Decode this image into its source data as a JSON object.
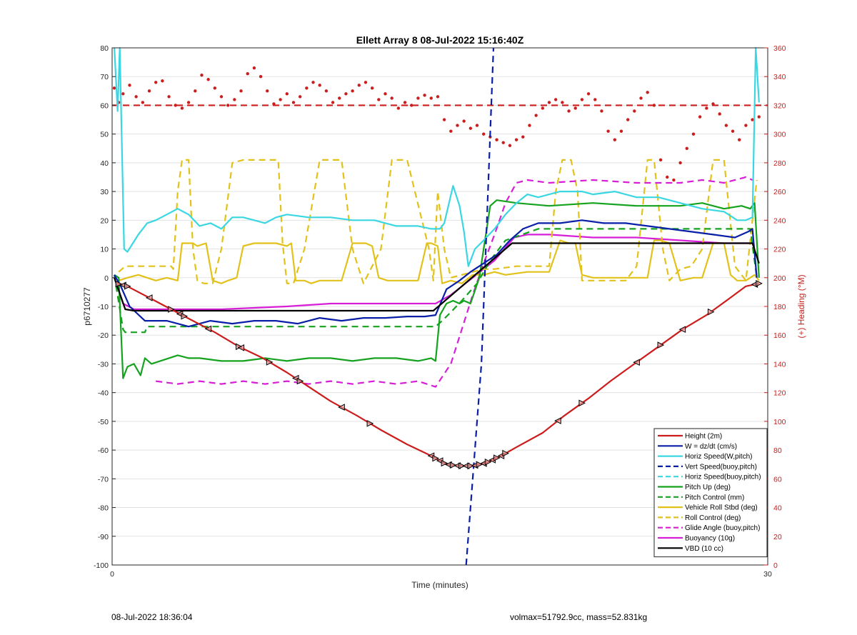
{
  "footer": {
    "left": "08-Jul-2022 18:36:04",
    "right": "volmax=51792.9cc, mass=52.831kg"
  },
  "colors": {
    "height": "#cc1d1d",
    "w": "#0a1fa8",
    "horiz": "#3ad7e3",
    "pitch": "#15a31f",
    "roll": "#e2c21a",
    "glide": "#d61fd6",
    "vbd": "#000000",
    "heading": "#cc1d1d",
    "grid": "#e3e3e3"
  },
  "chart_data": {
    "type": "line",
    "title": "Ellett Array 8 08-Jul-2022 15:16:40Z",
    "xlabel": "Time (minutes)",
    "ylabel": "p6710277",
    "ylabel_right": "(+) Heading (°M)",
    "xlim": [
      0,
      30
    ],
    "ylim": [
      -100,
      80
    ],
    "ylim_right": [
      0,
      360
    ],
    "xticks": [
      0,
      30
    ],
    "yticks": [
      -100,
      -90,
      -80,
      -70,
      -60,
      -50,
      -40,
      -30,
      -20,
      -10,
      0,
      10,
      20,
      30,
      40,
      50,
      60,
      70,
      80
    ],
    "yticks_right": [
      0,
      20,
      40,
      60,
      80,
      100,
      120,
      140,
      160,
      180,
      200,
      220,
      240,
      260,
      280,
      300,
      320,
      340,
      360
    ],
    "grid": true,
    "legend_position": "bottom-right",
    "series": [
      {
        "name": "Height (2m)",
        "style": "solid",
        "color": "#cc1d1d",
        "x": [
          0.2,
          0.7,
          1.7,
          2.7,
          3.7,
          4.7,
          5.8,
          6.9,
          8.0,
          9.0,
          10.0,
          11.2,
          12.3,
          13.5,
          14.6,
          15.3,
          15.9,
          16.5,
          17.1,
          17.8,
          18.5,
          19.7,
          20.7,
          21.8,
          22.8,
          23.9,
          25.0,
          26.1,
          27.2,
          28.2,
          29.0,
          29.6
        ],
        "y": [
          -2,
          -3,
          -7,
          -11,
          -15,
          -19,
          -24,
          -28,
          -33,
          -38,
          -43,
          -48,
          -53,
          -58,
          -62,
          -65,
          -65.5,
          -65.5,
          -64.5,
          -62,
          -59,
          -54,
          -48,
          -42,
          -36,
          -30,
          -24,
          -18,
          -13,
          -7.5,
          -3,
          -2
        ]
      },
      {
        "name": "W = dz/dt (cm/s)",
        "style": "solid",
        "color": "#0a1fa8",
        "x": [
          0.1,
          0.4,
          0.8,
          1.5,
          2.5,
          3.5,
          4.5,
          5.5,
          6.5,
          7.5,
          8.5,
          9.5,
          10.5,
          11.5,
          12.5,
          13.5,
          14.3,
          14.8,
          15.3,
          15.9,
          16.4,
          17.0,
          17.6,
          18.2,
          18.8,
          19.5,
          20.5,
          21.5,
          22.5,
          23.5,
          24.5,
          25.5,
          26.5,
          27.5,
          28.5,
          29.1,
          29.3,
          29.5
        ],
        "y": [
          1,
          -3,
          -10,
          -15,
          -15,
          -17,
          -15,
          -16,
          -15,
          -15,
          -16,
          -14,
          -15,
          -14,
          -14,
          -13.5,
          -13.5,
          -13,
          -4,
          -1,
          2,
          5,
          8,
          13,
          17,
          19,
          19,
          20,
          19,
          19,
          18,
          17,
          16,
          15,
          14,
          16,
          17,
          0
        ]
      },
      {
        "name": "Horiz Speed(W,pitch)",
        "style": "solid",
        "color": "#3ad7e3",
        "x": [
          0.1,
          0.25,
          0.35,
          0.55,
          0.7,
          1.2,
          1.6,
          2.0,
          2.5,
          3.0,
          3.5,
          4.0,
          4.5,
          5.0,
          5.5,
          6.0,
          6.5,
          7.0,
          7.5,
          8.0,
          9.0,
          10.0,
          11.0,
          12.0,
          13.0,
          14.0,
          14.6,
          15.0,
          15.2,
          15.6,
          15.9,
          16.1,
          16.3,
          16.6,
          17.0,
          17.5,
          18.0,
          18.5,
          19.0,
          19.5,
          20.0,
          20.5,
          21.0,
          21.5,
          22.0,
          23.0,
          24.0,
          25.0,
          26.0,
          27.0,
          28.0,
          28.6,
          29.0,
          29.3,
          29.45,
          29.6
        ],
        "y": [
          80,
          58,
          80,
          10,
          9,
          15,
          19,
          20,
          22,
          24,
          22,
          18,
          19,
          17,
          21,
          21,
          20,
          19,
          21,
          22,
          21,
          21,
          20,
          20,
          18,
          18,
          17,
          17,
          19,
          32,
          25,
          16,
          4,
          10,
          13,
          17,
          22,
          26,
          29,
          28,
          29,
          30,
          30,
          30,
          29,
          30,
          28,
          28,
          26,
          24,
          23,
          20,
          20,
          21,
          80,
          61
        ]
      },
      {
        "name": "Vert Speed(buoy,pitch)",
        "style": "dashed",
        "color": "#0a1fa8",
        "x": [
          16.2,
          16.5,
          16.9,
          17.2,
          17.45
        ],
        "y": [
          -100,
          -70,
          -30,
          30,
          80
        ]
      },
      {
        "name": "Horiz Speed(buoy,pitch)",
        "style": "dashed",
        "color": "#3ad7e3",
        "x": [],
        "y": []
      },
      {
        "name": "Pitch Up (deg)",
        "style": "solid",
        "color": "#15a31f",
        "x": [
          0.1,
          0.3,
          0.5,
          0.7,
          1.0,
          1.3,
          1.5,
          1.8,
          2.2,
          2.6,
          3.0,
          3.5,
          4.0,
          5.0,
          6.0,
          7.0,
          8.0,
          9.0,
          10.0,
          11.0,
          12.0,
          13.0,
          14.0,
          14.6,
          14.8,
          15.0,
          15.3,
          15.6,
          15.9,
          16.1,
          16.4,
          16.8,
          17.1,
          17.3,
          17.6,
          18.5,
          20.0,
          22.0,
          24.0,
          26.0,
          27.0,
          28.0,
          28.8,
          29.2,
          29.4,
          29.6
        ],
        "y": [
          1,
          0,
          -35,
          -31,
          -30,
          -34,
          -28,
          -30,
          -29,
          -28,
          -27,
          -28,
          -28,
          -29,
          -29,
          -28,
          -29,
          -28,
          -28,
          -29,
          -28,
          -28,
          -29,
          -28,
          -29,
          -13,
          -9,
          -8,
          -9,
          -8,
          -9,
          0,
          15,
          25,
          27,
          26,
          25,
          26,
          25,
          25,
          26,
          24,
          25,
          24,
          26,
          0
        ]
      },
      {
        "name": "Pitch Control (mm)",
        "style": "dashed",
        "color": "#15a31f",
        "x": [
          0.1,
          0.5,
          0.6,
          1.5,
          1.6,
          14.8,
          15.1,
          15.5,
          16.0,
          16.7,
          17.3,
          18.0,
          19.5,
          20.5,
          29.2,
          29.5
        ],
        "y": [
          1,
          -18,
          -19,
          -19,
          -17,
          -17,
          -15,
          -12,
          -8,
          -2,
          6,
          13,
          17,
          17,
          17,
          0
        ]
      },
      {
        "name": "Vehicle Roll Stbd (deg)",
        "style": "solid",
        "color": "#e2c21a",
        "x": [
          0.3,
          0.7,
          1.2,
          1.6,
          2.0,
          2.5,
          3.0,
          3.2,
          3.4,
          3.7,
          3.9,
          4.3,
          4.6,
          5.0,
          5.3,
          5.7,
          6.0,
          6.5,
          7.0,
          7.5,
          8.0,
          8.2,
          8.4,
          8.8,
          9.1,
          9.5,
          10.0,
          10.5,
          11.0,
          11.3,
          11.6,
          11.9,
          12.2,
          12.6,
          13.0,
          13.5,
          14.0,
          14.4,
          14.6,
          14.9,
          15.1,
          15.5,
          16.0,
          16.5,
          17.0,
          17.5,
          18.0,
          19.0,
          20.0,
          20.5,
          20.9,
          21.2,
          21.5,
          22.0,
          23.0,
          24.0,
          24.5,
          24.8,
          25.1,
          25.5,
          26.0,
          26.6,
          27.0,
          27.5,
          28.0,
          28.3,
          28.6,
          29.0,
          29.4,
          29.6
        ],
        "y": [
          -1,
          0,
          1,
          0,
          -1,
          0,
          -1,
          12,
          12,
          12,
          11,
          12,
          -1,
          -2,
          -1,
          0,
          11,
          12,
          12,
          12,
          11,
          12,
          -1,
          -1,
          -2,
          -1,
          -1,
          -1,
          12,
          12,
          12,
          11,
          0,
          -1,
          -1,
          -1,
          -1,
          12,
          12,
          11,
          -2,
          -1,
          -2,
          1,
          1,
          2,
          1,
          2,
          2,
          13,
          12,
          12,
          1,
          0,
          0,
          0,
          0,
          13,
          13,
          12,
          -1,
          0,
          0,
          12,
          12,
          1,
          -1,
          -1,
          1,
          -1
        ]
      },
      {
        "name": "Roll Control (deg)",
        "style": "dashed",
        "color": "#e2c21a",
        "x": [
          0.3,
          0.6,
          2.5,
          2.7,
          2.8,
          3.0,
          3.2,
          3.35,
          3.5,
          3.7,
          3.9,
          4.2,
          4.4,
          4.6,
          5.0,
          5.5,
          6.0,
          7.0,
          7.6,
          7.8,
          8.0,
          8.3,
          8.8,
          9.5,
          10.5,
          11.0,
          11.5,
          12.3,
          12.8,
          13.5,
          14.5,
          14.7,
          14.9,
          15.2,
          15.5,
          16.0,
          16.5,
          17.0,
          17.5,
          18.5,
          19.5,
          20.0,
          20.3,
          20.6,
          21.0,
          21.3,
          21.5,
          22.0,
          23.5,
          24.0,
          24.5,
          24.8,
          25.2,
          25.5,
          26.0,
          26.5,
          27.0,
          27.5,
          28.0,
          28.5,
          29.0,
          29.5
        ],
        "y": [
          2,
          4,
          4,
          4,
          3,
          30,
          41,
          41,
          41,
          10,
          -1,
          -2,
          -2,
          -2,
          10,
          40,
          41,
          41,
          41,
          12,
          -2,
          -2,
          10,
          41,
          41,
          10,
          -2,
          10,
          41,
          41,
          10,
          -1,
          30,
          10,
          0,
          1,
          2,
          3,
          3,
          4,
          4,
          4,
          30,
          41,
          41,
          30,
          -1,
          -1,
          -1,
          4,
          41,
          41,
          10,
          -1,
          3,
          4,
          10,
          41,
          41,
          4,
          -1,
          34
        ]
      },
      {
        "name": "Glide Angle (buoy,pitch)",
        "style": "dashed",
        "color": "#d61fd6",
        "x": [
          2.0,
          3.0,
          4.0,
          5.0,
          6.0,
          7.0,
          8.0,
          9.0,
          10.0,
          11.0,
          12.0,
          13.0,
          14.0,
          14.8,
          15.5,
          16.0,
          16.5,
          17.0,
          17.5,
          18.0,
          18.5,
          19.0,
          20.0,
          22.0,
          24.0,
          26.0,
          27.0,
          28.0,
          29.0,
          29.3
        ],
        "y": [
          -36,
          -37,
          -36,
          -37,
          -36,
          -37,
          -36,
          -37,
          -36,
          -37,
          -36,
          -37,
          -36,
          -38,
          -30,
          -18,
          -6,
          5,
          15,
          26,
          33,
          34,
          33,
          34,
          33,
          33,
          34,
          33,
          35,
          34
        ]
      },
      {
        "name": "Buoyancy (10g)",
        "style": "solid",
        "color": "#d61fd6",
        "x": [
          0.1,
          0.5,
          1.0,
          2.0,
          5.0,
          8.0,
          10.0,
          12.0,
          14.0,
          14.8,
          15.5,
          16.5,
          17.5,
          18.4,
          19.0,
          20.0,
          22.0,
          24.0,
          26.0,
          28.0,
          29.3
        ],
        "y": [
          0,
          -9,
          -11,
          -11,
          -11,
          -10,
          -9,
          -9,
          -9,
          -9,
          -6,
          0,
          6,
          14,
          15,
          15,
          14,
          14,
          13,
          12,
          12
        ]
      },
      {
        "name": "VBD (10 cc)",
        "style": "solid",
        "color": "#000000",
        "x": [
          0.1,
          0.6,
          1.0,
          14.7,
          18.3,
          29.3,
          29.6
        ],
        "y": [
          0,
          -11,
          -11.5,
          -11.5,
          12,
          12,
          5
        ]
      }
    ],
    "heading_reference": {
      "name": "",
      "axis": "right",
      "style": "dashed",
      "color": "#cc1d1d",
      "y": 320
    },
    "heading_points": {
      "axis": "right",
      "style": "markers",
      "color": "#cc1d1d",
      "x": [
        0.1,
        0.3,
        0.5,
        0.8,
        1.1,
        1.4,
        1.7,
        2.0,
        2.3,
        2.6,
        2.9,
        3.2,
        3.5,
        3.8,
        4.1,
        4.4,
        4.7,
        5.0,
        5.3,
        5.6,
        5.9,
        6.2,
        6.5,
        6.8,
        7.1,
        7.4,
        7.7,
        8.0,
        8.3,
        8.6,
        8.9,
        9.2,
        9.5,
        9.8,
        10.1,
        10.4,
        10.7,
        11.0,
        11.3,
        11.6,
        11.9,
        12.2,
        12.5,
        12.8,
        13.1,
        13.4,
        13.7,
        14.0,
        14.3,
        14.6,
        14.9,
        15.2,
        15.5,
        15.8,
        16.1,
        16.4,
        16.7,
        17.0,
        17.3,
        17.6,
        17.9,
        18.2,
        18.5,
        18.8,
        19.1,
        19.4,
        19.7,
        20.0,
        20.3,
        20.6,
        20.9,
        21.2,
        21.5,
        21.8,
        22.1,
        22.4,
        22.7,
        23.0,
        23.3,
        23.6,
        23.9,
        24.2,
        24.5,
        24.8,
        25.1,
        25.4,
        25.7,
        26.0,
        26.3,
        26.6,
        26.9,
        27.2,
        27.5,
        27.8,
        28.1,
        28.4,
        28.7,
        29.0,
        29.3,
        29.6
      ],
      "y": [
        332,
        322,
        328,
        334,
        326,
        322,
        330,
        336,
        337,
        326,
        320,
        318,
        322,
        330,
        341,
        338,
        332,
        326,
        320,
        324,
        330,
        342,
        346,
        340,
        330,
        321,
        324,
        328,
        322,
        326,
        332,
        336,
        334,
        330,
        322,
        325,
        328,
        330,
        334,
        336,
        332,
        324,
        328,
        325,
        318,
        322,
        320,
        325,
        327,
        325,
        326,
        310,
        302,
        306,
        309,
        304,
        306,
        300,
        298,
        296,
        294,
        292,
        296,
        298,
        306,
        313,
        318,
        322,
        324,
        322,
        316,
        318,
        324,
        328,
        324,
        316,
        302,
        296,
        302,
        310,
        316,
        325,
        329,
        320,
        282,
        270,
        268,
        280,
        290,
        300,
        312,
        318,
        321,
        314,
        306,
        302,
        296,
        306,
        310,
        312
      ]
    }
  }
}
